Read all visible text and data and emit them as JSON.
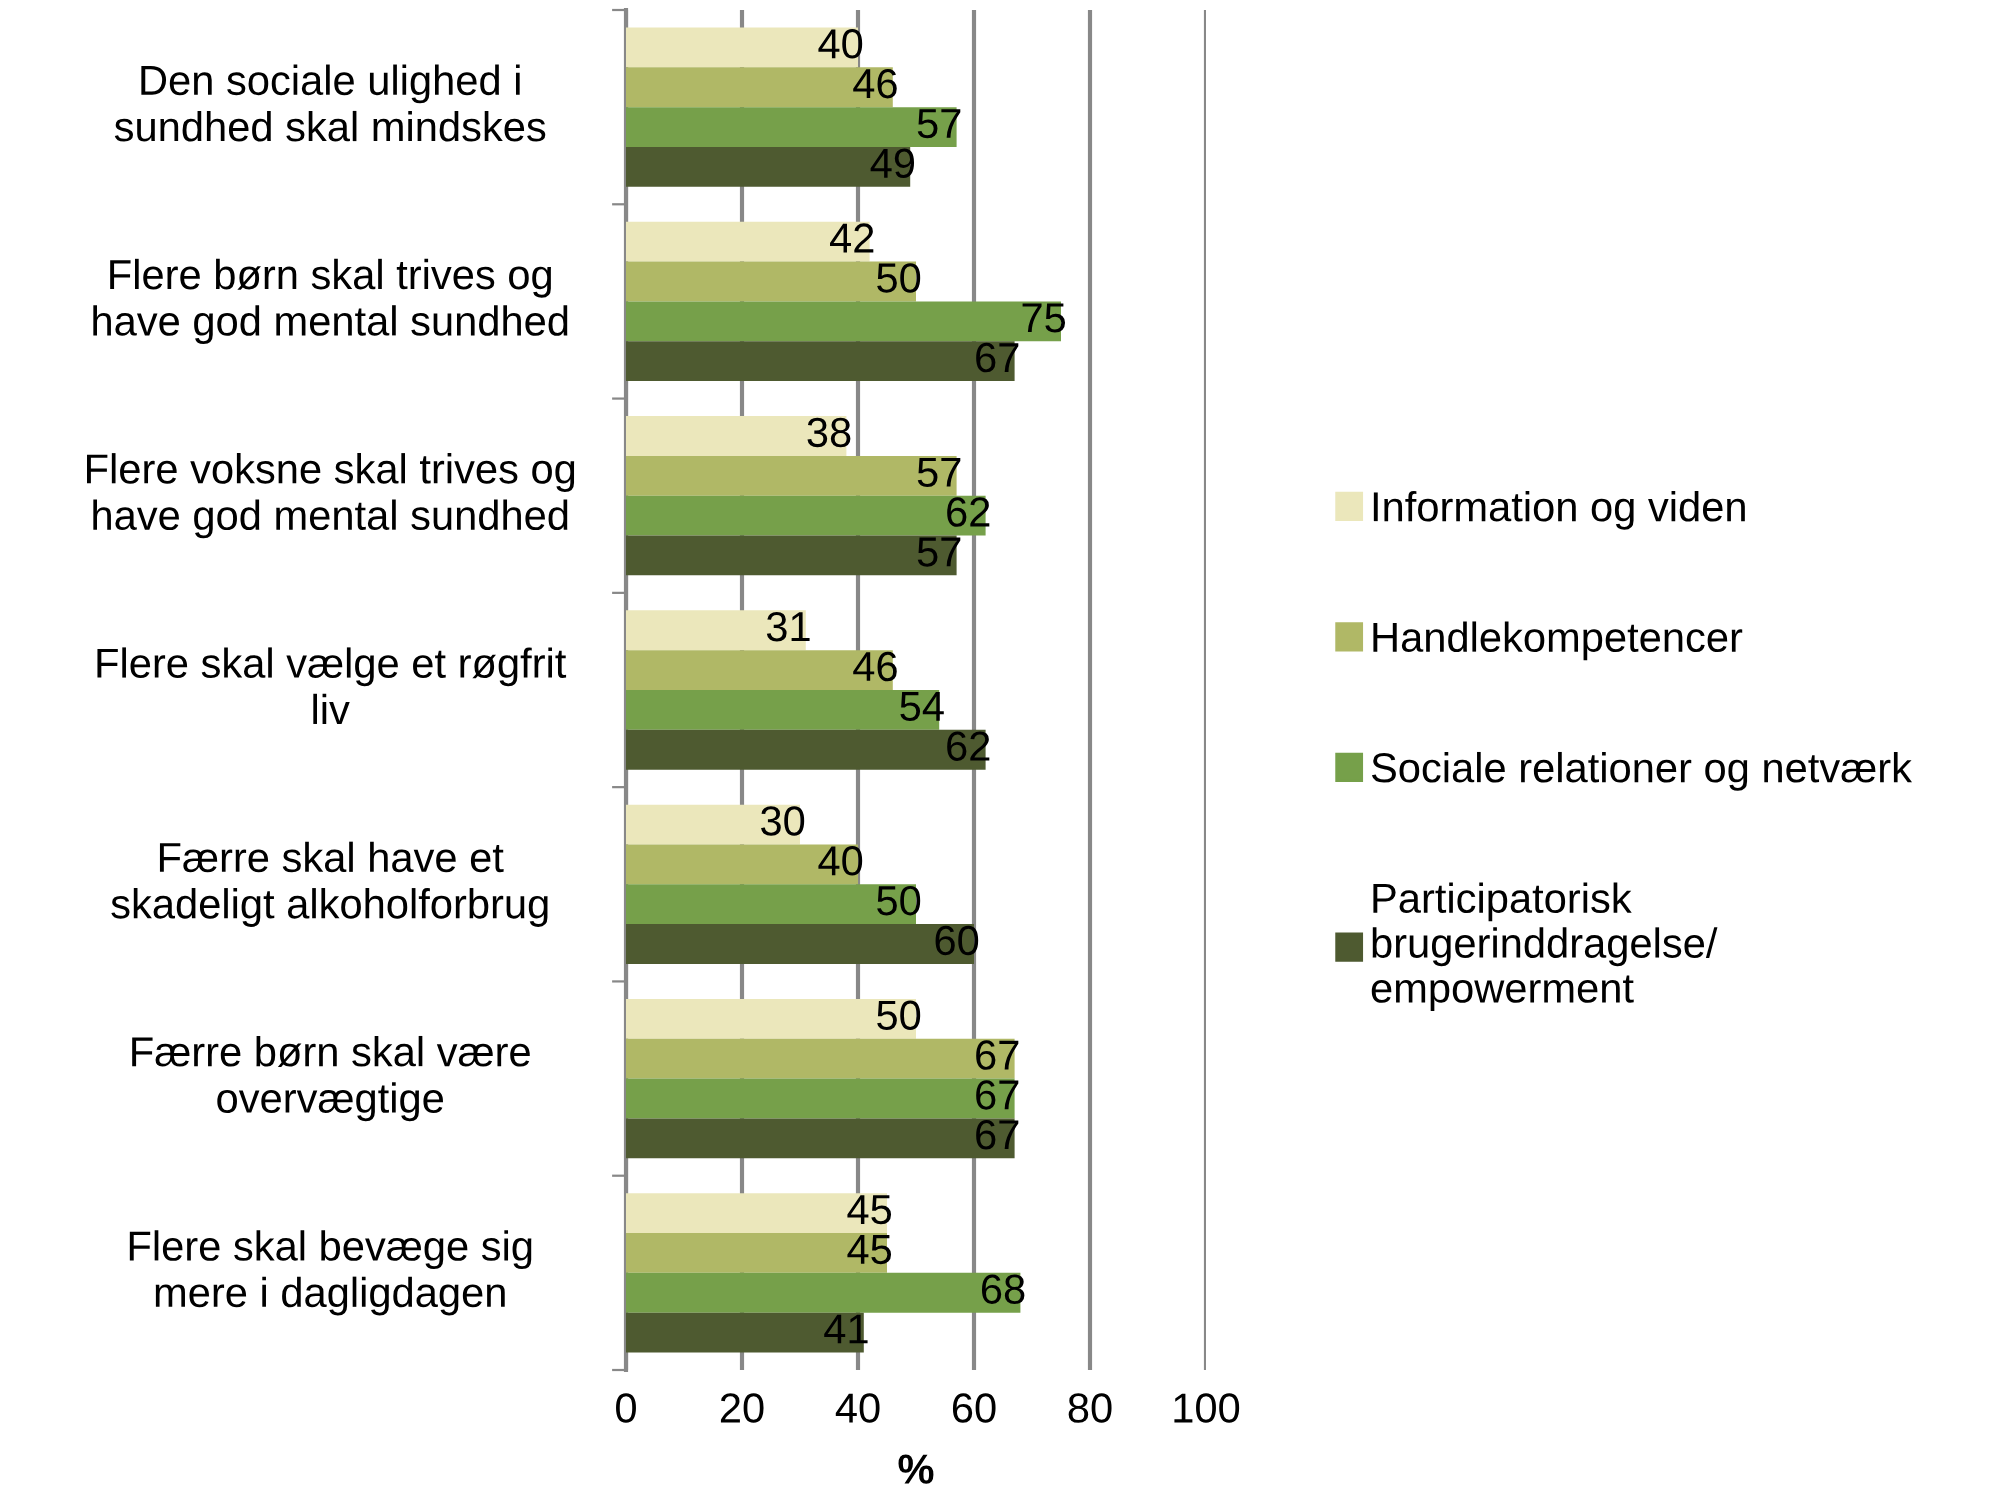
{
  "chart_data": {
    "type": "bar",
    "orientation": "horizontal",
    "xlabel": "%",
    "categories": [
      "Den sociale ulighed i\nsundhed skal mindskes",
      "Flere børn skal trives og\nhave god mental sundhed",
      "Flere voksne skal trives og\nhave god mental sundhed",
      "Flere skal vælge et røgfrit\nliv",
      "Færre skal have et\nskadeligt alkoholforbrug",
      "Færre børn skal være\novervægtige",
      "Flere skal bevæge sig\nmere i dagligdagen"
    ],
    "series": [
      {
        "name": "Information og viden",
        "color": "#ebe7bb",
        "values": [
          40,
          42,
          38,
          31,
          30,
          50,
          45
        ]
      },
      {
        "name": "Handlekompetencer",
        "color": "#b0b866",
        "values": [
          46,
          50,
          57,
          46,
          40,
          67,
          45
        ]
      },
      {
        "name": "Sociale relationer og netværk",
        "color": "#76a04a",
        "values": [
          57,
          75,
          62,
          54,
          50,
          67,
          68
        ]
      },
      {
        "name": "Participatorisk\nbrugerinddragelse/\nempowerment",
        "color": "#4e5a30",
        "values": [
          49,
          67,
          57,
          62,
          60,
          67,
          41
        ]
      }
    ],
    "xlim": [
      0,
      100
    ],
    "xticks": [
      0,
      20,
      40,
      60,
      80,
      100
    ],
    "grid": "x",
    "legend": "right",
    "data_labels": true
  }
}
